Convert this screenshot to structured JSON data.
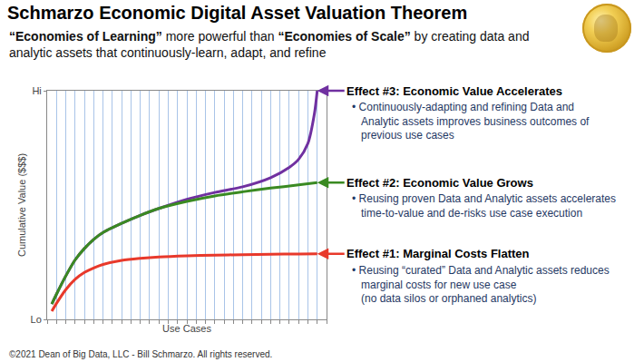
{
  "chart_data": {
    "type": "line",
    "title": "Schmarzo Economic Digital Asset Valuation Theorem",
    "subtitle": [
      "“Economies of Learning” more powerful than “Economies of Scale” by creating data and",
      "analytic assets that continuously-learn, adapt, and refine"
    ],
    "x_label": "Use Cases",
    "y_label": "Cumulative Value ($$$)",
    "xlim": [
      0,
      30
    ],
    "xticks": [
      0,
      1,
      2,
      3,
      4,
      5,
      6,
      7,
      8,
      9,
      10,
      11,
      12,
      13,
      14,
      15,
      16,
      17,
      18,
      19,
      20,
      21,
      22,
      23,
      24,
      25,
      26,
      27,
      28,
      29,
      30
    ],
    "ylim": [
      0,
      100
    ],
    "yticks": [
      {
        "value": 0,
        "label": "Lo"
      },
      {
        "value": 100,
        "label": "Hi"
      }
    ],
    "grid": true,
    "tick_labels": "y",
    "series": [
      {
        "name": "Effect #3: Economic Value Accelerates",
        "color": "#7030a0",
        "description": [
          "• Continuously-adapting and refining Data and",
          "Analytic assets improves business outcomes of",
          "previous use cases"
        ],
        "x": [
          0.5,
          1,
          2,
          3,
          4,
          5,
          6,
          8,
          10,
          12,
          15,
          18,
          21,
          24,
          26,
          27,
          28,
          28.7,
          29
        ],
        "values": [
          6.7,
          11,
          19,
          26,
          31,
          35,
          38,
          42,
          45.5,
          48.5,
          52.5,
          55.5,
          58,
          62,
          66.5,
          70,
          77,
          90,
          100
        ]
      },
      {
        "name": "Effect #2: Economic Value Grows",
        "color": "#3a8a22",
        "description": [
          "• Reusing proven Data and Analytic assets accelerates",
          "time-to-value and de-risks use case execution"
        ],
        "x": [
          0.5,
          1,
          2,
          3,
          4,
          5,
          6,
          8,
          10,
          12,
          15,
          18,
          21,
          24,
          27,
          29
        ],
        "values": [
          6.7,
          11,
          19,
          26,
          31,
          35,
          38,
          42,
          45.5,
          48.5,
          51.6,
          54,
          55.8,
          57.4,
          58.8,
          59.8
        ]
      },
      {
        "name": "Effect #1: Marginal Costs Flatten",
        "color": "#e8392b",
        "description": [
          "• Reusing “curated” Data and Analytic assets reduces",
          "marginal costs for new use case",
          "(no data silos or orphaned analytics)"
        ],
        "x": [
          0.5,
          1,
          2,
          3,
          4,
          5,
          6,
          8,
          10,
          12,
          15,
          18,
          21,
          24,
          27,
          29
        ],
        "values": [
          3.6,
          7,
          13,
          17.5,
          20.5,
          22.5,
          24,
          25.8,
          26.7,
          27.3,
          27.8,
          28.1,
          28.3,
          28.5,
          28.6,
          28.7
        ]
      }
    ],
    "footnote": "©2021 Dean of Big Data, LLC - Bill Schmarzo. All rights reserved."
  }
}
